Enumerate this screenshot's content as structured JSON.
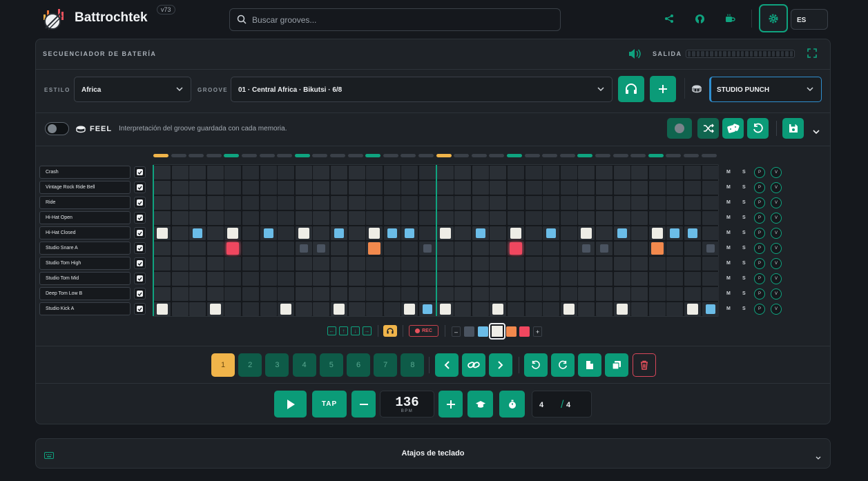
{
  "app": {
    "brand": "Battrochtek",
    "version": "v73",
    "language": "ES"
  },
  "search": {
    "placeholder": "Buscar grooves..."
  },
  "sequencer": {
    "title": "SECUENCIADOR DE BATERÍA",
    "output_label": "SALIDA",
    "style_label": "ESTILO",
    "style_value": "Africa",
    "groove_label": "GROOVE",
    "groove_value": "01 · Central Africa · Bikutsi · 6/8",
    "kit_value": "STUDIO PUNCH",
    "feel_label": "FEEL",
    "feel_description": "Interpretación del groove guardada con cada memoria.",
    "feel_enabled": false
  },
  "tracks": [
    {
      "name": "Crash",
      "enabled": true
    },
    {
      "name": "Vintage Rock Ride Bell",
      "enabled": true
    },
    {
      "name": "Ride",
      "enabled": true
    },
    {
      "name": "Hi-Hat Open",
      "enabled": true
    },
    {
      "name": "Hi-Hat Closed",
      "enabled": true
    },
    {
      "name": "Studio Snare A",
      "enabled": true
    },
    {
      "name": "Studio Tom High",
      "enabled": true
    },
    {
      "name": "Studio Tom Mid",
      "enabled": true
    },
    {
      "name": "Deep Tom Low B",
      "enabled": true
    },
    {
      "name": "Studio Kick A",
      "enabled": true
    }
  ],
  "track_controls": {
    "mute": "M",
    "solo": "S",
    "pan_knob": "P",
    "volume_knob": "V"
  },
  "steps": 32,
  "current_step": 0,
  "velocity_colors": {
    "ghost": "#4a5360",
    "soft": "#6bbde8",
    "normal": "#eeede6",
    "accent": "#f2894d",
    "max": "#f0475f"
  },
  "pattern": {
    "Hi-Hat Closed": [
      [
        0,
        "normal"
      ],
      [
        2,
        "soft"
      ],
      [
        4,
        "normal"
      ],
      [
        6,
        "soft"
      ],
      [
        8,
        "normal"
      ],
      [
        10,
        "soft"
      ],
      [
        12,
        "normal"
      ],
      [
        13,
        "soft"
      ],
      [
        14,
        "soft"
      ],
      [
        16,
        "normal"
      ],
      [
        18,
        "soft"
      ],
      [
        20,
        "normal"
      ],
      [
        22,
        "soft"
      ],
      [
        24,
        "normal"
      ],
      [
        26,
        "soft"
      ],
      [
        28,
        "normal"
      ],
      [
        29,
        "soft"
      ],
      [
        30,
        "soft"
      ]
    ],
    "Studio Snare A": [
      [
        4,
        "max"
      ],
      [
        8,
        "ghost"
      ],
      [
        9,
        "ghost"
      ],
      [
        12,
        "accent"
      ],
      [
        15,
        "ghost"
      ],
      [
        20,
        "max"
      ],
      [
        24,
        "ghost"
      ],
      [
        25,
        "ghost"
      ],
      [
        28,
        "accent"
      ],
      [
        31,
        "ghost"
      ]
    ],
    "Studio Kick A": [
      [
        0,
        "normal"
      ],
      [
        3,
        "normal"
      ],
      [
        7,
        "normal"
      ],
      [
        10,
        "normal"
      ],
      [
        14,
        "normal"
      ],
      [
        15,
        "soft"
      ],
      [
        16,
        "normal"
      ],
      [
        19,
        "normal"
      ],
      [
        23,
        "normal"
      ],
      [
        26,
        "normal"
      ],
      [
        30,
        "normal"
      ],
      [
        31,
        "soft"
      ]
    ]
  },
  "edit_tools": {
    "rec_label": "REC",
    "selected_velocity": "normal"
  },
  "memories": {
    "slots": [
      "1",
      "2",
      "3",
      "4",
      "5",
      "6",
      "7",
      "8"
    ],
    "active": "1"
  },
  "transport": {
    "tap_label": "TAP",
    "bpm": "136",
    "bpm_unit": "BPM",
    "time_signature_top": "4",
    "time_signature_separator": "/",
    "time_signature_bottom": "4"
  },
  "footer": {
    "shortcuts_label": "Atajos de teclado"
  },
  "icons": [
    "search-icon",
    "share-icon",
    "github-icon",
    "coffee-icon",
    "gear-icon",
    "speaker-icon",
    "fullscreen-icon",
    "headphones-icon",
    "plus-icon",
    "drum-icon",
    "chevron-down-icon",
    "record-icon",
    "shuffle-icon",
    "dice-icon",
    "undo-icon",
    "save-icon",
    "play-icon",
    "minus-icon",
    "metronome-icon",
    "timer-icon",
    "link-icon",
    "copy-icon",
    "trash-icon",
    "keyboard-icon"
  ],
  "colors": {
    "accent": "#0b9b78",
    "beat_indicator_active": "#f0b44a",
    "beat_indicator": "#0fa37f"
  }
}
